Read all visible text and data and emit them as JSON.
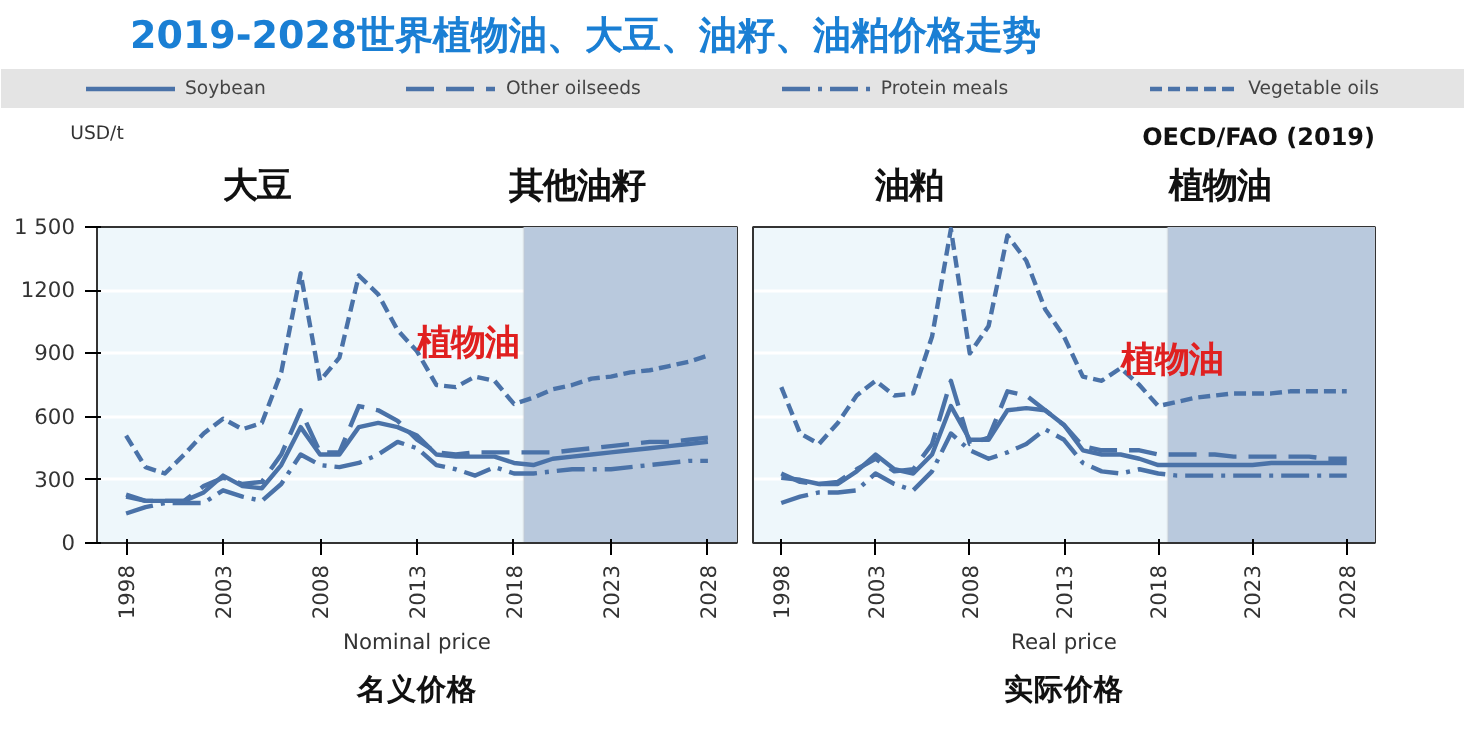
{
  "chart_data": [
    {
      "type": "line",
      "title": "2019-2028世界植物油、大豆、油籽、油粕价格走势",
      "xlabel": "Nominal price",
      "ylabel": "USD/t",
      "annotations": [
        "大豆",
        "其他油籽",
        "名义价格",
        {
          "text": "植物油",
          "x": 2013,
          "y": 945
        }
      ],
      "x": [
        1998,
        1999,
        2000,
        2001,
        2002,
        2003,
        2004,
        2005,
        2006,
        2007,
        2008,
        2009,
        2010,
        2011,
        2012,
        2013,
        2014,
        2015,
        2016,
        2017,
        2018,
        2019,
        2020,
        2021,
        2022,
        2023,
        2024,
        2025,
        2026,
        2027,
        2028
      ],
      "series": [
        {
          "name": "Soybean",
          "color": "#4a72a8",
          "line_style": "solid",
          "values": [
            220,
            200,
            200,
            200,
            240,
            320,
            270,
            260,
            370,
            550,
            420,
            420,
            550,
            570,
            550,
            510,
            420,
            410,
            410,
            410,
            380,
            370,
            400,
            410,
            420,
            430,
            440,
            450,
            460,
            470,
            480
          ]
        },
        {
          "name": "Other oilseeds",
          "color": "#4a72a8",
          "line_style": "long_dashed",
          "values": [
            230,
            200,
            200,
            200,
            270,
            310,
            280,
            290,
            420,
            630,
            430,
            430,
            650,
            630,
            580,
            490,
            430,
            420,
            430,
            430,
            430,
            430,
            430,
            440,
            450,
            460,
            470,
            480,
            480,
            490,
            500
          ]
        },
        {
          "name": "Protein meals",
          "color": "#4a72a8",
          "line_style": "dashdot",
          "values": [
            140,
            170,
            190,
            190,
            190,
            250,
            220,
            200,
            280,
            420,
            370,
            360,
            380,
            420,
            480,
            450,
            370,
            350,
            320,
            360,
            330,
            330,
            340,
            350,
            350,
            350,
            360,
            370,
            380,
            390,
            390
          ]
        },
        {
          "name": "Vegetable oils",
          "color": "#4a72a8",
          "line_style": "dashed",
          "values": [
            510,
            360,
            330,
            420,
            520,
            590,
            540,
            570,
            810,
            1280,
            770,
            880,
            1270,
            1180,
            1010,
            910,
            750,
            740,
            790,
            770,
            660,
            690,
            730,
            750,
            780,
            790,
            810,
            820,
            840,
            860,
            890
          ]
        }
      ],
      "xlim": [
        1996.5,
        2029.5
      ],
      "ylim": [
        0,
        1500
      ],
      "xticks": [
        1998,
        2003,
        2008,
        2013,
        2018,
        2023,
        2028
      ],
      "yticks": [
        0,
        300,
        600,
        900,
        1200,
        {
          "value": 1500,
          "label": "1 500"
        }
      ],
      "bands": [
        {
          "axis": "x",
          "from": 2018.5,
          "to": 2029.5,
          "color": "#b9c9dd"
        }
      ],
      "grid": "y",
      "legend": "top"
    },
    {
      "type": "line",
      "xlabel": "Real price",
      "annotations": [
        "油粕",
        "植物油",
        "实际价格",
        "OECD/FAO (2019)",
        {
          "text": "植物油",
          "x": 2016,
          "y": 863
        }
      ],
      "x": [
        1998,
        1999,
        2000,
        2001,
        2002,
        2003,
        2004,
        2005,
        2006,
        2007,
        2008,
        2009,
        2010,
        2011,
        2012,
        2013,
        2014,
        2015,
        2016,
        2017,
        2018,
        2019,
        2020,
        2021,
        2022,
        2023,
        2024,
        2025,
        2026,
        2027,
        2028
      ],
      "series": [
        {
          "color": "#4a72a8",
          "line_style": "solid",
          "values": [
            310,
            300,
            280,
            280,
            340,
            420,
            350,
            330,
            420,
            650,
            490,
            490,
            630,
            640,
            630,
            560,
            440,
            420,
            420,
            400,
            370,
            370,
            370,
            370,
            370,
            370,
            380,
            380,
            380,
            380,
            380
          ]
        },
        {
          "color": "#4a72a8",
          "line_style": "long_dashed",
          "values": [
            330,
            290,
            280,
            290,
            350,
            400,
            340,
            350,
            470,
            770,
            470,
            500,
            720,
            700,
            630,
            560,
            460,
            440,
            440,
            440,
            420,
            420,
            420,
            420,
            410,
            410,
            410,
            410,
            410,
            400,
            400
          ]
        },
        {
          "color": "#4a72a8",
          "line_style": "dashdot",
          "values": [
            190,
            220,
            240,
            240,
            250,
            330,
            280,
            250,
            340,
            520,
            440,
            400,
            430,
            470,
            540,
            490,
            380,
            340,
            330,
            350,
            330,
            320,
            320,
            320,
            320,
            320,
            320,
            320,
            320,
            320,
            320
          ]
        },
        {
          "color": "#4a72a8",
          "line_style": "dashed",
          "values": [
            740,
            520,
            470,
            570,
            700,
            770,
            700,
            710,
            980,
            1490,
            900,
            1030,
            1460,
            1340,
            1110,
            980,
            790,
            770,
            830,
            750,
            650,
            670,
            690,
            700,
            710,
            710,
            710,
            720,
            720,
            720,
            720
          ]
        }
      ],
      "xlim": [
        1996.5,
        2029.5
      ],
      "ylim": [
        0,
        1500
      ],
      "xticks": [
        1998,
        2003,
        2008,
        2013,
        2018,
        2023,
        2028
      ],
      "yticks": [
        0,
        300,
        600,
        900,
        1200,
        1500
      ],
      "bands": [
        {
          "axis": "x",
          "from": 2018.5,
          "to": 2029.5,
          "color": "#b9c9dd"
        }
      ],
      "grid": "y",
      "tick_labels": "x"
    }
  ]
}
